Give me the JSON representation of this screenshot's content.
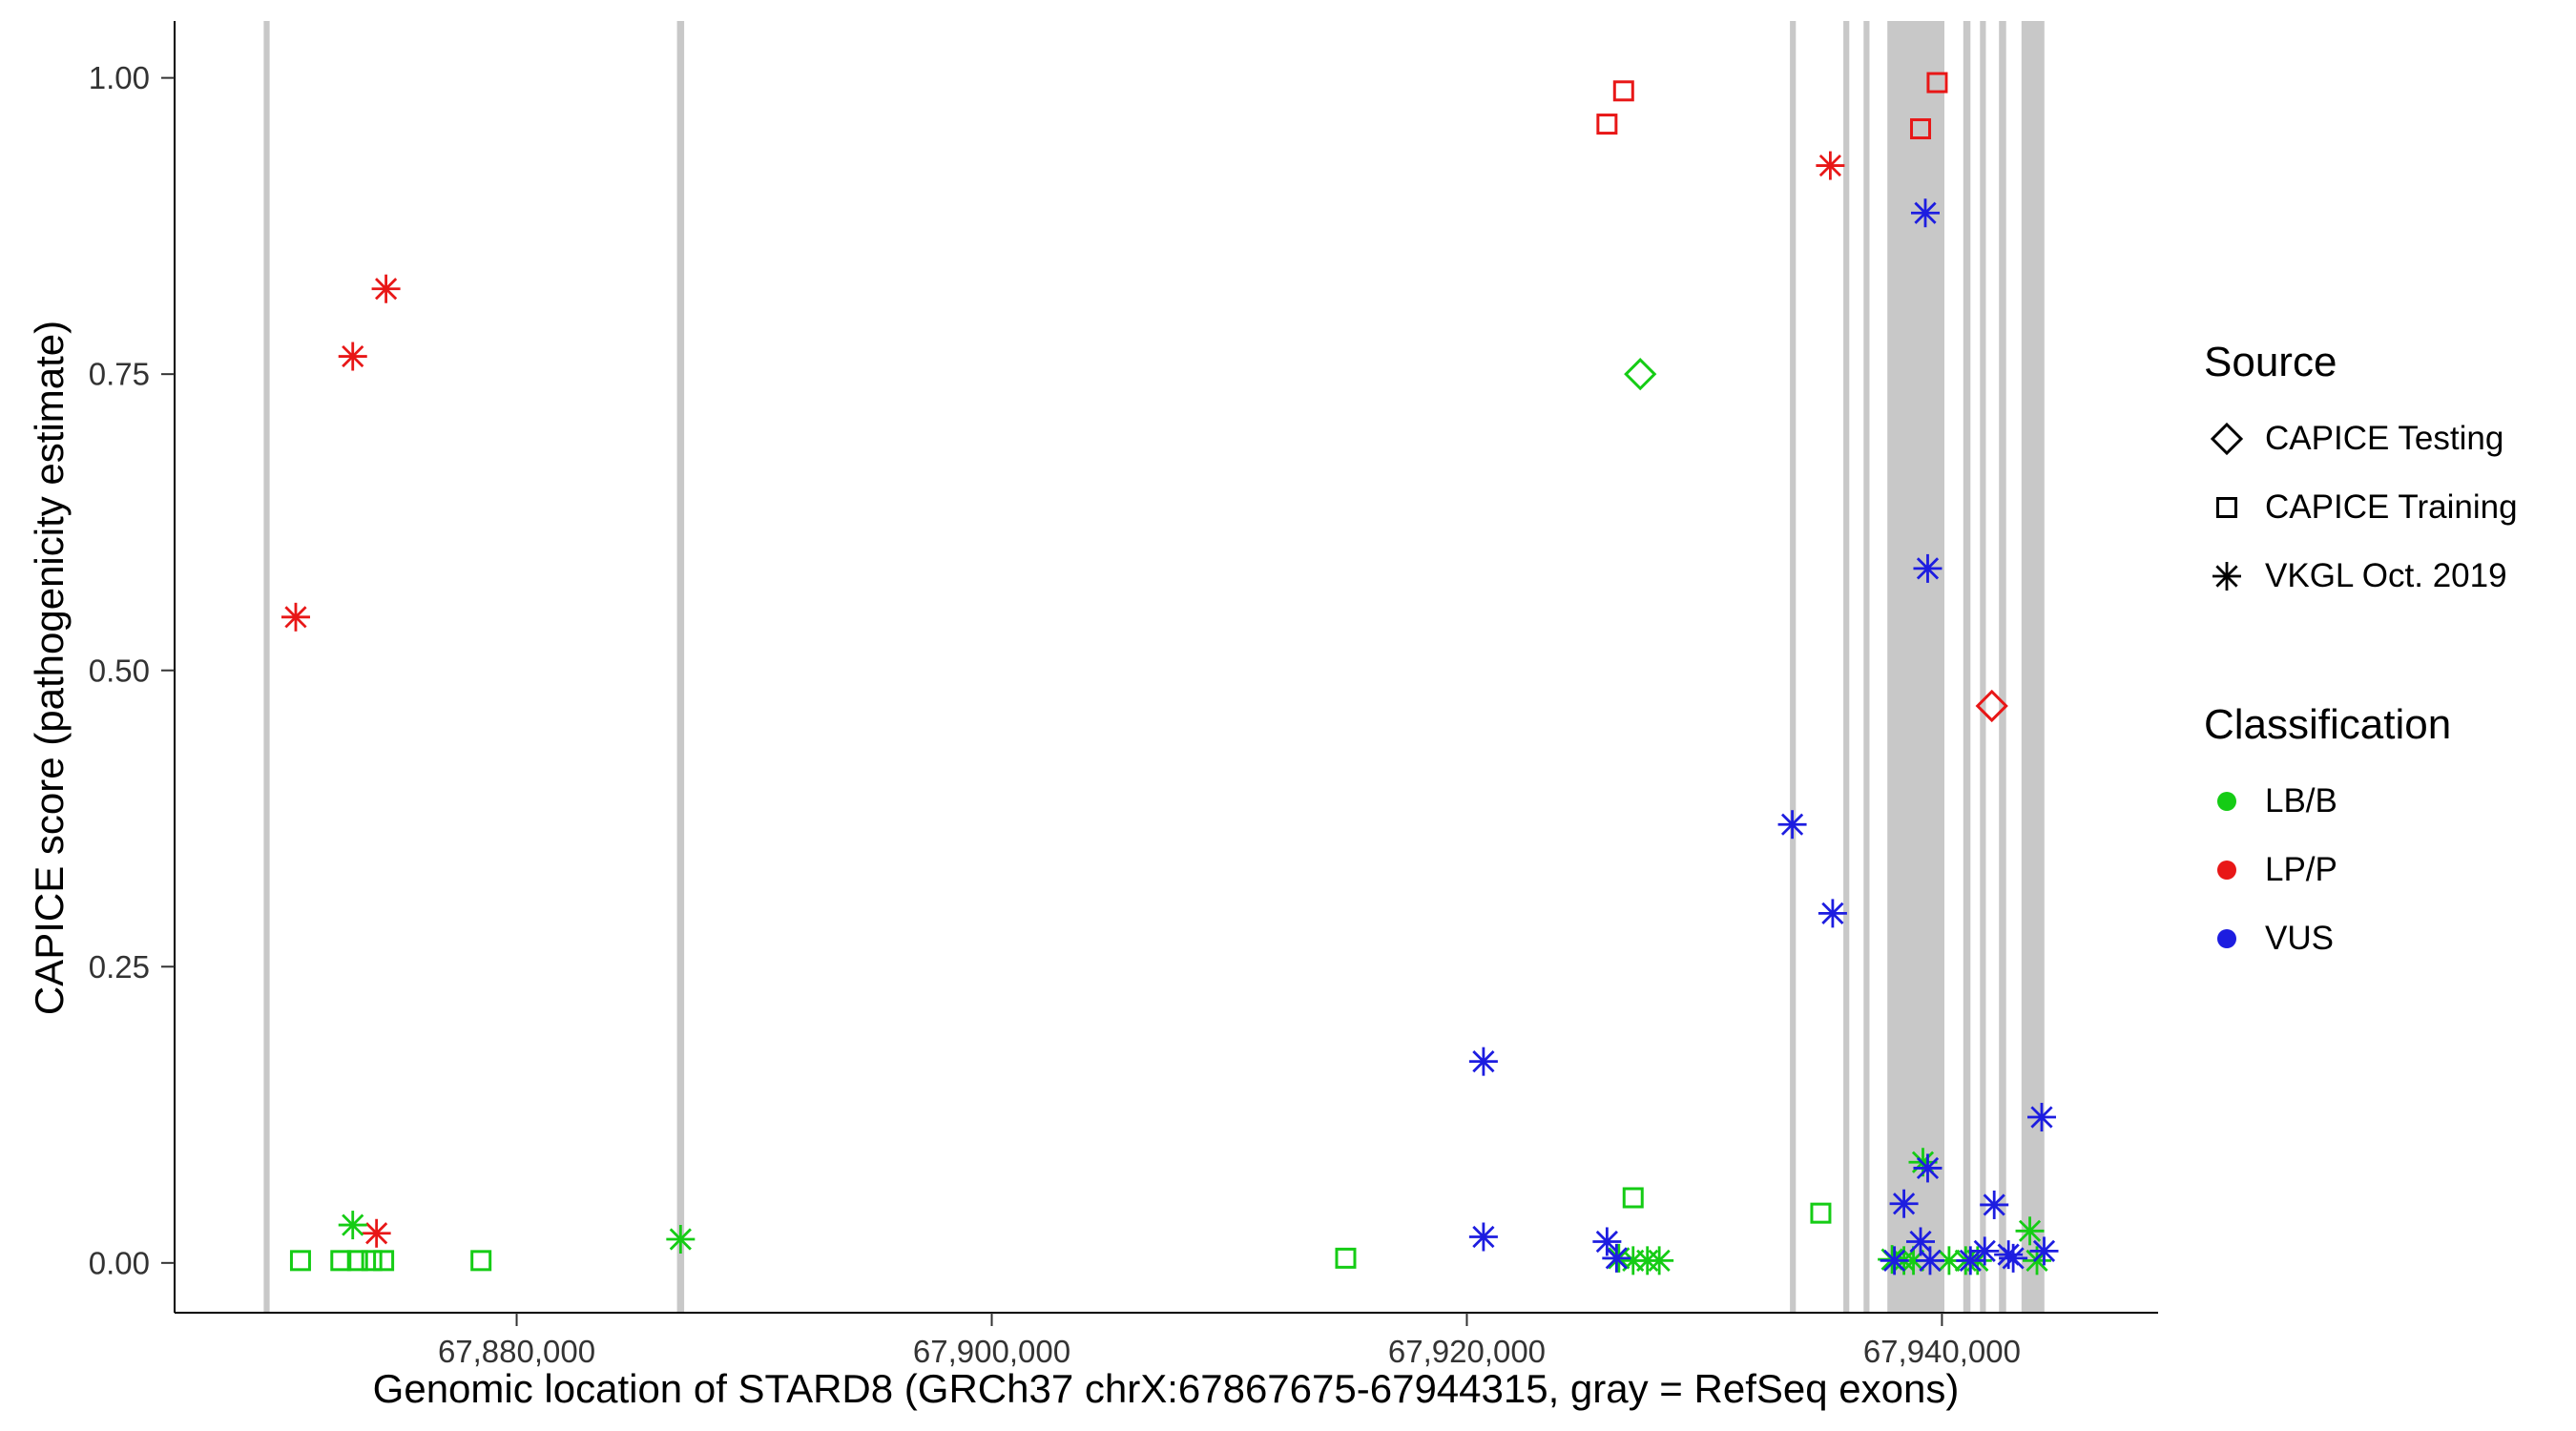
{
  "chart_data": {
    "type": "scatter",
    "title": "",
    "xlabel": "Genomic location of STARD8 (GRCh37 chrX:67867675-67944315, gray = RefSeq exons)",
    "ylabel": "CAPICE score (pathogenicity estimate)",
    "xlim": [
      67865600,
      67949100
    ],
    "ylim": [
      -0.042,
      1.048
    ],
    "x_ticks": [
      67880000,
      67900000,
      67920000,
      67940000
    ],
    "x_tick_labels": [
      "67,880,000",
      "67,900,000",
      "67,920,000",
      "67,940,000"
    ],
    "y_ticks": [
      0,
      0.25,
      0.5,
      0.75,
      1
    ],
    "y_tick_labels": [
      "0.00",
      "0.25",
      "0.50",
      "0.75",
      "1.00"
    ],
    "grid": "off",
    "legend_position": "right",
    "exon_color": "#c8c8c8",
    "exons": [
      [
        67869350,
        67869600
      ],
      [
        67886750,
        67887050
      ],
      [
        67933600,
        67933850
      ],
      [
        67935850,
        67936100
      ],
      [
        67936700,
        67936950
      ],
      [
        67937700,
        67940100
      ],
      [
        67940900,
        67941200
      ],
      [
        67941600,
        67941850
      ],
      [
        67942400,
        67942700
      ],
      [
        67943350,
        67944315
      ]
    ],
    "legend": {
      "source_title": "Source",
      "classification_title": "Classification"
    },
    "sources": [
      {
        "name": "CAPICE Testing",
        "shape": "diamond"
      },
      {
        "name": "CAPICE Training",
        "shape": "square"
      },
      {
        "name": "VKGL Oct. 2019",
        "shape": "asterisk"
      }
    ],
    "classifications": [
      {
        "name": "LB/B",
        "color": "#15cc15"
      },
      {
        "name": "LP/P",
        "color": "#e81717"
      },
      {
        "name": "VUS",
        "color": "#1d1de0"
      }
    ],
    "series": [
      {
        "source": "CAPICE Testing",
        "shape": "diamond",
        "classification": "LB/B",
        "points": [
          [
            67927300,
            0.75
          ]
        ]
      },
      {
        "source": "CAPICE Testing",
        "shape": "diamond",
        "classification": "LP/P",
        "points": [
          [
            67942100,
            0.47
          ]
        ]
      },
      {
        "source": "CAPICE Training",
        "shape": "square",
        "classification": "LB/B",
        "points": [
          [
            67870900,
            0.002
          ],
          [
            67872600,
            0.002
          ],
          [
            67873300,
            0.002
          ],
          [
            67873900,
            0.002
          ],
          [
            67874400,
            0.002
          ],
          [
            67878500,
            0.002
          ],
          [
            67914900,
            0.004
          ],
          [
            67927000,
            0.055
          ],
          [
            67934900,
            0.042
          ]
        ]
      },
      {
        "source": "CAPICE Training",
        "shape": "square",
        "classification": "LP/P",
        "points": [
          [
            67925900,
            0.961
          ],
          [
            67926600,
            0.989
          ],
          [
            67939100,
            0.957
          ],
          [
            67939800,
            0.996
          ]
        ]
      },
      {
        "source": "VKGL Oct. 2019",
        "shape": "asterisk",
        "classification": "LP/P",
        "points": [
          [
            67870700,
            0.545
          ],
          [
            67873100,
            0.765
          ],
          [
            67874500,
            0.822
          ],
          [
            67874100,
            0.025
          ],
          [
            67935300,
            0.926
          ]
        ]
      },
      {
        "source": "VKGL Oct. 2019",
        "shape": "asterisk",
        "classification": "LB/B",
        "points": [
          [
            67873100,
            0.032
          ],
          [
            67886900,
            0.02
          ],
          [
            67926400,
            0.004
          ],
          [
            67927000,
            0.002
          ],
          [
            67927600,
            0.002
          ],
          [
            67928100,
            0.002
          ],
          [
            67937900,
            0.003
          ],
          [
            67938400,
            0.002
          ],
          [
            67938800,
            0.002
          ],
          [
            67939200,
            0.085
          ],
          [
            67940300,
            0.002
          ],
          [
            67941000,
            0.002
          ],
          [
            67941500,
            0.002
          ],
          [
            67943700,
            0.027
          ],
          [
            67944000,
            0.002
          ]
        ]
      },
      {
        "source": "VKGL Oct. 2019",
        "shape": "asterisk",
        "classification": "VUS",
        "points": [
          [
            67920700,
            0.17
          ],
          [
            67920700,
            0.022
          ],
          [
            67925900,
            0.018
          ],
          [
            67926300,
            0.004
          ],
          [
            67933700,
            0.37
          ],
          [
            67935400,
            0.295
          ],
          [
            67938400,
            0.05
          ],
          [
            67938000,
            0.002
          ],
          [
            67939100,
            0.018
          ],
          [
            67939300,
            0.886
          ],
          [
            67939400,
            0.586
          ],
          [
            67939400,
            0.08
          ],
          [
            67939500,
            0.002
          ],
          [
            67941200,
            0.002
          ],
          [
            67941800,
            0.01
          ],
          [
            67942200,
            0.049
          ],
          [
            67942800,
            0.007
          ],
          [
            67943000,
            0.004
          ],
          [
            67944200,
            0.123
          ],
          [
            67944300,
            0.01
          ]
        ]
      }
    ]
  }
}
